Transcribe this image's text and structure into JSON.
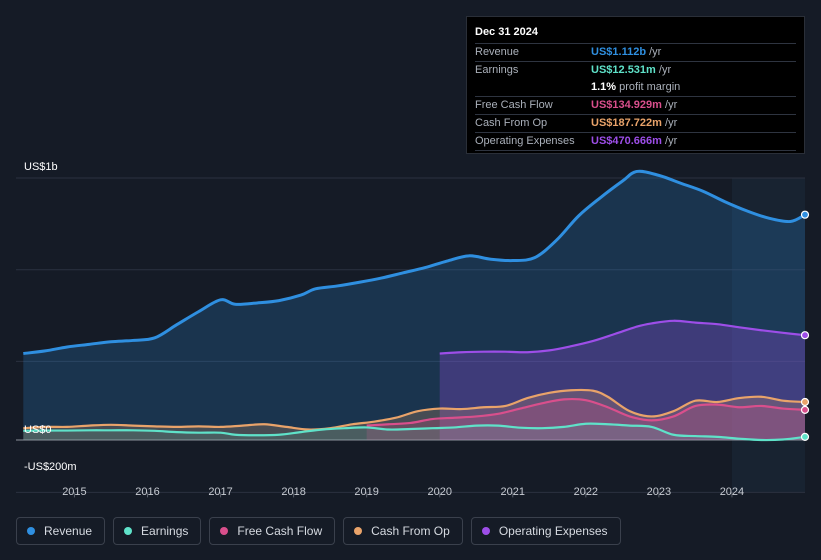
{
  "chart_data": {
    "type": "area",
    "y_unit_labels": [
      "US$1b",
      "US$0",
      "-US$200m"
    ],
    "ylim": [
      -200,
      1000
    ],
    "xlim": [
      2014.2,
      2025.0
    ],
    "x_ticks": [
      "2015",
      "2016",
      "2017",
      "2018",
      "2019",
      "2020",
      "2021",
      "2022",
      "2023",
      "2024"
    ],
    "series": [
      {
        "name": "Revenue",
        "key": "revenue",
        "color": "#2f8fe0",
        "x": [
          2014.3,
          2014.6,
          2014.9,
          2015.2,
          2015.5,
          2015.8,
          2016.1,
          2016.4,
          2016.7,
          2017.0,
          2017.2,
          2017.5,
          2017.8,
          2018.1,
          2018.3,
          2018.6,
          2018.9,
          2019.2,
          2019.5,
          2019.8,
          2020.1,
          2020.4,
          2020.7,
          2021.0,
          2021.3,
          2021.6,
          2021.9,
          2022.2,
          2022.5,
          2022.7,
          2023.0,
          2023.3,
          2023.6,
          2023.9,
          2024.2,
          2024.5,
          2024.8,
          2025.0
        ],
        "values": [
          330,
          340,
          355,
          365,
          375,
          380,
          390,
          440,
          490,
          535,
          518,
          523,
          532,
          553,
          577,
          588,
          602,
          618,
          638,
          658,
          683,
          703,
          690,
          685,
          696,
          763,
          855,
          925,
          988,
          1025,
          1010,
          980,
          950,
          910,
          875,
          847,
          834,
          860
        ]
      },
      {
        "name": "Operating Expenses",
        "key": "opex",
        "color": "#9d4ee8",
        "x": [
          2020.0,
          2020.3,
          2020.6,
          2020.9,
          2021.2,
          2021.5,
          2021.8,
          2022.1,
          2022.4,
          2022.7,
          2022.9,
          2023.2,
          2023.5,
          2023.8,
          2024.1,
          2024.4,
          2024.7,
          2025.0
        ],
        "values": [
          330,
          335,
          337,
          337,
          335,
          342,
          358,
          378,
          405,
          433,
          445,
          455,
          448,
          442,
          430,
          419,
          409,
          400
        ]
      },
      {
        "name": "Cash From Op",
        "key": "cfo",
        "color": "#e9a36a",
        "x": [
          2014.3,
          2014.6,
          2014.9,
          2015.2,
          2015.5,
          2015.8,
          2016.1,
          2016.4,
          2016.7,
          2017.0,
          2017.3,
          2017.6,
          2017.9,
          2018.2,
          2018.5,
          2018.8,
          2019.1,
          2019.4,
          2019.7,
          2020.0,
          2020.3,
          2020.6,
          2020.9,
          2021.2,
          2021.5,
          2021.8,
          2022.1,
          2022.3,
          2022.6,
          2022.9,
          2023.2,
          2023.5,
          2023.8,
          2024.1,
          2024.4,
          2024.7,
          2025.0
        ],
        "values": [
          45,
          50,
          50,
          55,
          58,
          55,
          52,
          50,
          52,
          50,
          55,
          60,
          50,
          40,
          45,
          60,
          70,
          85,
          110,
          120,
          118,
          125,
          130,
          160,
          180,
          190,
          188,
          165,
          110,
          90,
          110,
          150,
          145,
          160,
          165,
          150,
          145
        ]
      },
      {
        "name": "Free Cash Flow",
        "key": "fcf",
        "color": "#d94f8c",
        "x": [
          2019.0,
          2019.3,
          2019.6,
          2019.9,
          2020.2,
          2020.5,
          2020.8,
          2021.1,
          2021.4,
          2021.7,
          2022.0,
          2022.3,
          2022.6,
          2022.9,
          2023.2,
          2023.5,
          2023.8,
          2024.1,
          2024.4,
          2024.7,
          2025.0
        ],
        "values": [
          55,
          60,
          65,
          80,
          85,
          90,
          100,
          120,
          140,
          155,
          152,
          125,
          90,
          75,
          90,
          130,
          135,
          125,
          130,
          120,
          115
        ]
      },
      {
        "name": "Earnings",
        "key": "earnings",
        "color": "#5fe2c9",
        "x": [
          2014.3,
          2014.6,
          2014.9,
          2015.2,
          2015.5,
          2015.8,
          2016.1,
          2016.4,
          2016.7,
          2017.0,
          2017.2,
          2017.5,
          2017.8,
          2018.1,
          2018.4,
          2018.7,
          2019.0,
          2019.3,
          2019.6,
          2019.9,
          2020.2,
          2020.5,
          2020.8,
          2021.1,
          2021.4,
          2021.7,
          2022.0,
          2022.3,
          2022.6,
          2022.9,
          2023.2,
          2023.5,
          2023.8,
          2024.1,
          2024.4,
          2024.7,
          2025.0
        ],
        "values": [
          35,
          36,
          36,
          37,
          37,
          37,
          35,
          30,
          28,
          28,
          20,
          18,
          20,
          30,
          40,
          45,
          48,
          40,
          42,
          45,
          48,
          55,
          55,
          47,
          45,
          50,
          62,
          60,
          55,
          50,
          20,
          15,
          12,
          5,
          0,
          2,
          12
        ]
      }
    ],
    "highlight_x": 2024.0
  },
  "tooltip": {
    "date": "Dec 31 2024",
    "rows": [
      {
        "label": "Revenue",
        "value": "US$1.112b",
        "unit": " /yr",
        "color": "#2f8fe0"
      },
      {
        "label": "Earnings",
        "value": "US$12.531m",
        "unit": " /yr",
        "color": "#5fe2c9"
      },
      {
        "label": "",
        "value": "1.1%",
        "unit": " profit margin",
        "color": "#ffffff"
      },
      {
        "label": "Free Cash Flow",
        "value": "US$134.929m",
        "unit": " /yr",
        "color": "#d94f8c"
      },
      {
        "label": "Cash From Op",
        "value": "US$187.722m",
        "unit": " /yr",
        "color": "#e9a36a"
      },
      {
        "label": "Operating Expenses",
        "value": "US$470.666m",
        "unit": " /yr",
        "color": "#9d4ee8"
      }
    ]
  },
  "legend": [
    {
      "label": "Revenue",
      "color": "#2f8fe0"
    },
    {
      "label": "Earnings",
      "color": "#5fe2c9"
    },
    {
      "label": "Free Cash Flow",
      "color": "#d94f8c"
    },
    {
      "label": "Cash From Op",
      "color": "#e9a36a"
    },
    {
      "label": "Operating Expenses",
      "color": "#9d4ee8"
    }
  ]
}
